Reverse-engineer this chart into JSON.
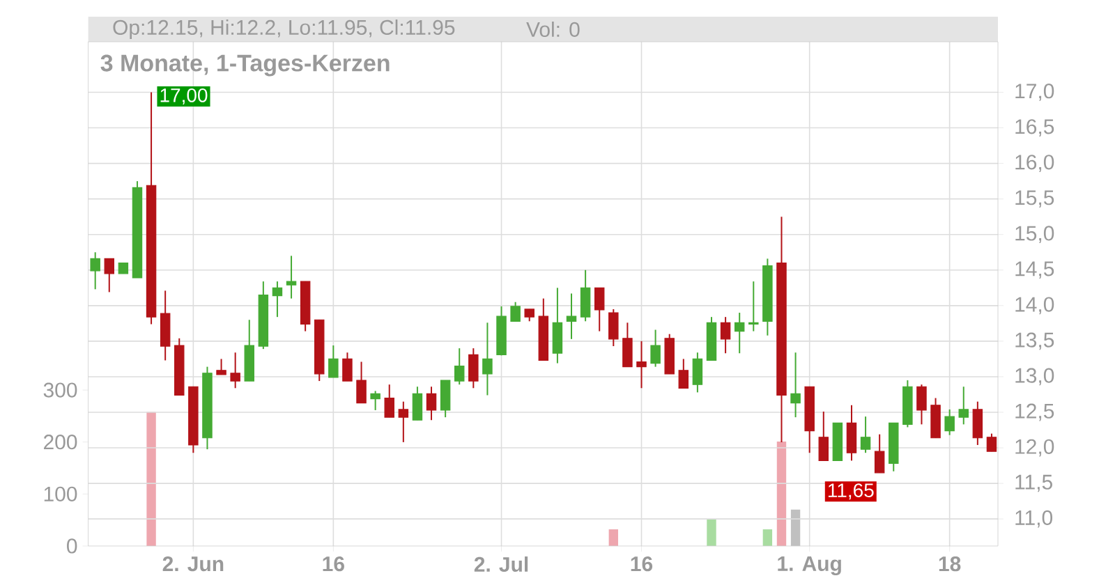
{
  "chart_data": {
    "type": "candlestick",
    "title": "3 Monate, 1-Tages-Kerzen",
    "annotations": [
      "Op:12.15, Hi:12.2, Lo:11.95, Cl:11.95",
      "Vol: 0",
      "17,00",
      "11,65"
    ],
    "grid": true,
    "categories": [
      null,
      null,
      null,
      null,
      null,
      null,
      null,
      "2. Jun",
      null,
      null,
      null,
      null,
      null,
      null,
      null,
      null,
      null,
      "16",
      null,
      null,
      null,
      null,
      null,
      null,
      null,
      null,
      null,
      null,
      null,
      "2. Jul",
      null,
      null,
      null,
      null,
      null,
      null,
      null,
      null,
      null,
      "16",
      null,
      null,
      null,
      null,
      null,
      null,
      null,
      null,
      null,
      null,
      null,
      "1. Aug",
      null,
      null,
      null,
      null,
      null,
      null,
      null,
      null,
      null,
      "18",
      null,
      null,
      null
    ],
    "ylim": [
      10.62,
      17.71
    ],
    "yticks": [
      {
        "value": 11.0,
        "label": "11,0"
      },
      {
        "value": 11.5,
        "label": "11,5"
      },
      {
        "value": 12.0,
        "label": "12,0"
      },
      {
        "value": 12.5,
        "label": "12,5"
      },
      {
        "value": 13.0,
        "label": "13,0"
      },
      {
        "value": 13.5,
        "label": "13,5"
      },
      {
        "value": 14.0,
        "label": "14,0"
      },
      {
        "value": 14.5,
        "label": "14,5"
      },
      {
        "value": 15.0,
        "label": "15,0"
      },
      {
        "value": 15.5,
        "label": "15,5"
      },
      {
        "value": 16.0,
        "label": "16,0"
      },
      {
        "value": 16.5,
        "label": "16,5"
      },
      {
        "value": 17.0,
        "label": "17,0"
      }
    ],
    "y2lim": [
      0,
      970
    ],
    "y2ticks": [
      0,
      100,
      200,
      300
    ],
    "series": [
      {
        "ohlc": [
          [
            14.49,
            14.75,
            14.23,
            14.66
          ],
          [
            14.66,
            14.66,
            14.19,
            14.45
          ],
          [
            14.45,
            14.6,
            14.45,
            14.6
          ],
          [
            14.39,
            15.75,
            14.39,
            15.66
          ],
          [
            15.69,
            17.0,
            13.74,
            13.84
          ],
          [
            13.89,
            14.21,
            13.23,
            13.43
          ],
          [
            13.44,
            13.54,
            12.74,
            12.74
          ],
          [
            12.86,
            12.86,
            11.93,
            12.04
          ],
          [
            12.14,
            13.14,
            11.98,
            13.05
          ],
          [
            13.09,
            13.25,
            13.03,
            13.03
          ],
          [
            13.05,
            13.34,
            12.84,
            12.94
          ],
          [
            12.94,
            13.8,
            12.94,
            13.44
          ],
          [
            13.43,
            14.34,
            13.39,
            14.15
          ],
          [
            14.14,
            14.34,
            13.84,
            14.25
          ],
          [
            14.29,
            14.7,
            14.1,
            14.34
          ],
          [
            14.34,
            14.34,
            13.64,
            13.74
          ],
          [
            13.8,
            13.8,
            12.94,
            13.04
          ],
          [
            12.99,
            13.44,
            12.99,
            13.25
          ],
          [
            13.25,
            13.34,
            12.94,
            12.94
          ],
          [
            12.95,
            13.21,
            12.63,
            12.63
          ],
          [
            12.69,
            12.8,
            12.53,
            12.76
          ],
          [
            12.7,
            12.89,
            12.43,
            12.43
          ],
          [
            12.54,
            12.65,
            12.08,
            12.43
          ],
          [
            12.39,
            12.86,
            12.39,
            12.76
          ],
          [
            12.76,
            12.86,
            12.39,
            12.53
          ],
          [
            12.53,
            12.95,
            12.43,
            12.95
          ],
          [
            12.94,
            13.4,
            12.89,
            13.15
          ],
          [
            13.31,
            13.4,
            12.84,
            12.94
          ],
          [
            13.04,
            13.76,
            12.74,
            13.25
          ],
          [
            13.31,
            13.99,
            13.3,
            13.85
          ],
          [
            13.78,
            14.05,
            13.78,
            13.99
          ],
          [
            13.95,
            13.95,
            13.78,
            13.84
          ],
          [
            13.85,
            14.1,
            13.23,
            13.23
          ],
          [
            13.33,
            14.25,
            13.19,
            13.76
          ],
          [
            13.78,
            14.17,
            13.53,
            13.85
          ],
          [
            13.84,
            14.5,
            13.78,
            14.25
          ],
          [
            14.25,
            14.25,
            13.64,
            13.94
          ],
          [
            13.9,
            13.95,
            13.43,
            13.53
          ],
          [
            13.54,
            13.76,
            13.14,
            13.14
          ],
          [
            13.21,
            13.5,
            12.84,
            13.14
          ],
          [
            13.19,
            13.66,
            13.14,
            13.44
          ],
          [
            13.54,
            13.6,
            13.04,
            13.04
          ],
          [
            13.09,
            13.25,
            12.84,
            12.84
          ],
          [
            12.89,
            13.34,
            12.78,
            13.25
          ],
          [
            13.23,
            13.84,
            13.23,
            13.76
          ],
          [
            13.76,
            13.84,
            13.33,
            13.53
          ],
          [
            13.64,
            13.9,
            13.33,
            13.76
          ],
          [
            13.74,
            14.34,
            13.64,
            13.76
          ],
          [
            13.78,
            14.66,
            13.58,
            14.56
          ],
          [
            14.6,
            15.25,
            12.08,
            12.74
          ],
          [
            12.63,
            13.34,
            12.43,
            12.76
          ],
          [
            12.86,
            12.86,
            11.93,
            12.24
          ],
          [
            12.15,
            12.51,
            11.82,
            11.82
          ],
          [
            11.82,
            12.35,
            11.82,
            12.35
          ],
          [
            12.35,
            12.6,
            11.82,
            11.93
          ],
          [
            11.98,
            12.44,
            11.93,
            12.15
          ],
          [
            11.95,
            12.19,
            11.65,
            11.65
          ],
          [
            11.78,
            12.35,
            11.67,
            12.35
          ],
          [
            12.33,
            12.95,
            12.29,
            12.86
          ],
          [
            12.86,
            12.89,
            12.33,
            12.53
          ],
          [
            12.6,
            12.7,
            12.14,
            12.14
          ],
          [
            12.24,
            12.54,
            12.18,
            12.44
          ],
          [
            12.43,
            12.86,
            12.33,
            12.54
          ],
          [
            12.54,
            12.65,
            12.04,
            12.14
          ],
          [
            12.15,
            12.2,
            11.95,
            11.95
          ]
        ],
        "colors": [
          "#44aa33",
          "#b31217",
          "#44aa33",
          "#44aa33",
          "#b31217",
          "#b31217",
          "#b31217",
          "#b31217",
          "#44aa33",
          "#b31217",
          "#b31217",
          "#44aa33",
          "#44aa33",
          "#44aa33",
          "#44aa33",
          "#b31217",
          "#b31217",
          "#44aa33",
          "#b31217",
          "#b31217",
          "#44aa33",
          "#b31217",
          "#b31217",
          "#44aa33",
          "#b31217",
          "#44aa33",
          "#44aa33",
          "#b31217",
          "#44aa33",
          "#44aa33",
          "#44aa33",
          "#b31217",
          "#b31217",
          "#44aa33",
          "#44aa33",
          "#44aa33",
          "#b31217",
          "#b31217",
          "#b31217",
          "#b31217",
          "#44aa33",
          "#b31217",
          "#b31217",
          "#44aa33",
          "#44aa33",
          "#b31217",
          "#44aa33",
          "#44aa33",
          "#44aa33",
          "#b31217",
          "#44aa33",
          "#b31217",
          "#b31217",
          "#44aa33",
          "#b31217",
          "#44aa33",
          "#b31217",
          "#44aa33",
          "#44aa33",
          "#b31217",
          "#b31217",
          "#44aa33",
          "#44aa33",
          "#b31217",
          "#b31217"
        ]
      },
      {
        "type": "bar",
        "axis": "y2",
        "values": [
          null,
          null,
          null,
          null,
          258,
          null,
          null,
          null,
          null,
          null,
          null,
          null,
          null,
          null,
          null,
          null,
          null,
          null,
          null,
          null,
          null,
          null,
          null,
          null,
          null,
          null,
          null,
          null,
          null,
          null,
          null,
          null,
          null,
          null,
          null,
          null,
          null,
          32,
          null,
          null,
          null,
          null,
          null,
          null,
          52,
          null,
          null,
          null,
          32,
          201,
          70,
          null,
          null,
          null,
          null,
          null,
          null,
          null,
          null,
          null,
          null,
          null,
          null,
          null,
          null
        ],
        "colors": [
          null,
          null,
          null,
          null,
          "#eea6ae",
          null,
          null,
          null,
          null,
          null,
          null,
          null,
          null,
          null,
          null,
          null,
          null,
          null,
          null,
          null,
          null,
          null,
          null,
          null,
          null,
          null,
          null,
          null,
          null,
          null,
          null,
          null,
          null,
          null,
          null,
          null,
          null,
          "#eea6ae",
          null,
          null,
          null,
          null,
          null,
          null,
          "#a8dca0",
          null,
          null,
          null,
          "#a8dca0",
          "#eea6ae",
          "#c0c0c0",
          null,
          null,
          null,
          null,
          null,
          null,
          null,
          null,
          null,
          null,
          null,
          null,
          null,
          null
        ]
      }
    ]
  }
}
